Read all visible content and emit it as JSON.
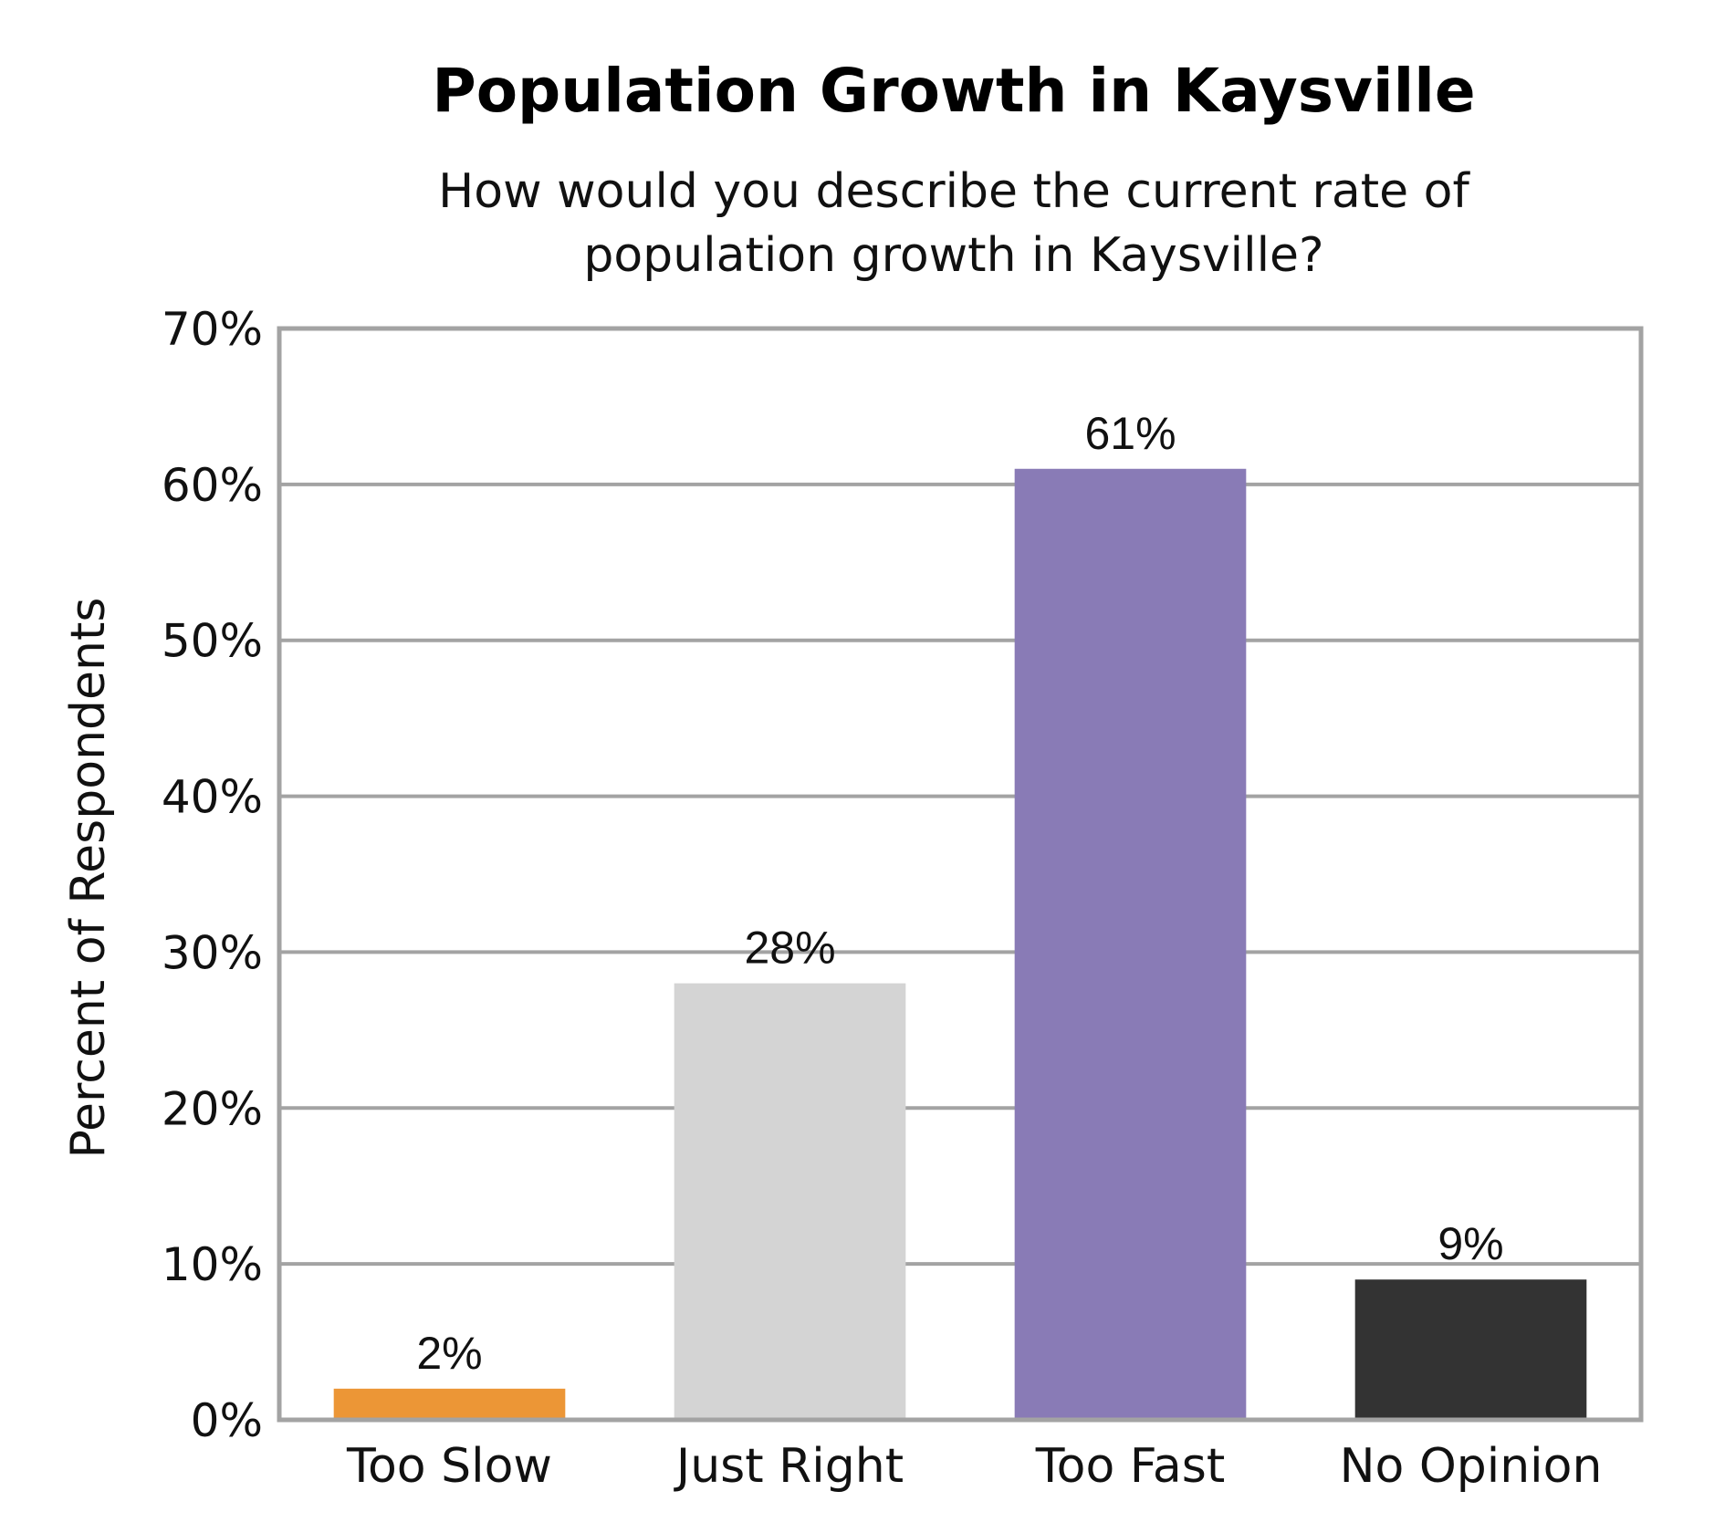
{
  "chart_data": {
    "type": "bar",
    "title": "Population Growth in Kaysville",
    "subtitle_lines": [
      "How would you describe the current rate of",
      "population growth in Kaysville?"
    ],
    "xlabel": "",
    "ylabel": "Percent of Respondents",
    "categories": [
      "Too Slow",
      "Just Right",
      "Too Fast",
      "No Opinion"
    ],
    "values": [
      2,
      28,
      61,
      9
    ],
    "data_labels": [
      "2%",
      "28%",
      "61%",
      "9%"
    ],
    "colors": [
      "#EC9636",
      "#D4D4D4",
      "#897BB6",
      "#333333"
    ],
    "ylim": [
      0,
      70
    ],
    "yticks": [
      0,
      10,
      20,
      30,
      40,
      50,
      60,
      70
    ],
    "ytick_labels": [
      "0%",
      "10%",
      "20%",
      "30%",
      "40%",
      "50%",
      "60%",
      "70%"
    ],
    "grid": true,
    "legend": "none"
  }
}
